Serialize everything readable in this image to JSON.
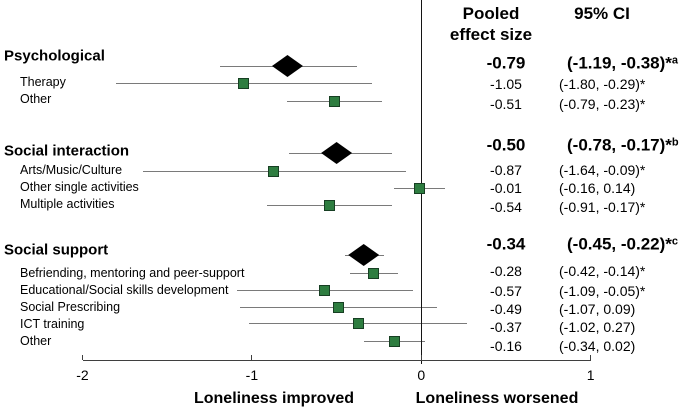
{
  "chart_data": {
    "type": "forest",
    "title": "",
    "xlim": [
      -2,
      1
    ],
    "grid": false,
    "x_ticks": [
      {
        "value": -2,
        "label": "-2"
      },
      {
        "value": -1,
        "label": "-1"
      },
      {
        "value": 0,
        "label": "0"
      },
      {
        "value": 1,
        "label": "1"
      }
    ],
    "direction_labels": {
      "left": "Loneliness improved",
      "right": "Loneliness worsened"
    },
    "column_headers": {
      "pooled_line1": "Pooled",
      "pooled_line2": "effect size",
      "ci": "95% CI"
    },
    "rows": [
      {
        "label": "Psychological",
        "kind": "summary",
        "est": -0.79,
        "lo": -1.19,
        "hi": -0.38,
        "est_text": "-0.79",
        "ci_text": "(-1.19, -0.38)*",
        "sup": "a",
        "y_marker": 66,
        "y_text": 63,
        "y_label": 56
      },
      {
        "label": "Therapy",
        "kind": "study",
        "est": -1.05,
        "lo": -1.8,
        "hi": -0.29,
        "est_text": "-1.05",
        "ci_text": "(-1.80, -0.29)*",
        "sup": "",
        "y_marker": 83,
        "y_text": 84,
        "y_label": 82
      },
      {
        "label": "Other",
        "kind": "study",
        "est": -0.51,
        "lo": -0.79,
        "hi": -0.23,
        "est_text": "-0.51",
        "ci_text": "(-0.79, -0.23)*",
        "sup": "",
        "y_marker": 101,
        "y_text": 104,
        "y_label": 99
      },
      {
        "label": "Social interaction",
        "kind": "summary",
        "est": -0.5,
        "lo": -0.78,
        "hi": -0.17,
        "est_text": "-0.50",
        "ci_text": "(-0.78, -0.17)*",
        "sup": "b",
        "y_marker": 153,
        "y_text": 145,
        "y_label": 151
      },
      {
        "label": "Arts/Music/Culture",
        "kind": "study",
        "est": -0.87,
        "lo": -1.64,
        "hi": -0.09,
        "est_text": "-0.87",
        "ci_text": "(-1.64, -0.09)*",
        "sup": "",
        "y_marker": 171,
        "y_text": 170,
        "y_label": 170
      },
      {
        "label": "Other single activities",
        "kind": "study",
        "est": -0.01,
        "lo": -0.16,
        "hi": 0.14,
        "est_text": "-0.01",
        "ci_text": "(-0.16, 0.14)",
        "sup": "",
        "y_marker": 188,
        "y_text": 188,
        "y_label": 187
      },
      {
        "label": "Multiple activities",
        "kind": "study",
        "est": -0.54,
        "lo": -0.91,
        "hi": -0.17,
        "est_text": "-0.54",
        "ci_text": "(-0.91, -0.17)*",
        "sup": "",
        "y_marker": 205,
        "y_text": 207,
        "y_label": 204
      },
      {
        "label": "Social support",
        "kind": "summary",
        "est": -0.34,
        "lo": -0.45,
        "hi": -0.22,
        "est_text": "-0.34",
        "ci_text": "(-0.45, -0.22)*",
        "sup": "c",
        "y_marker": 255,
        "y_text": 244,
        "y_label": 250
      },
      {
        "label": "Befriending, mentoring and peer-support",
        "kind": "study",
        "est": -0.28,
        "lo": -0.42,
        "hi": -0.14,
        "est_text": "-0.28",
        "ci_text": "(-0.42, -0.14)*",
        "sup": "",
        "y_marker": 273,
        "y_text": 271,
        "y_label": 273
      },
      {
        "label": "Educational/Social skills development",
        "kind": "study",
        "est": -0.57,
        "lo": -1.09,
        "hi": -0.05,
        "est_text": "-0.57",
        "ci_text": "(-1.09, -0.05)*",
        "sup": "",
        "y_marker": 290,
        "y_text": 291,
        "y_label": 290
      },
      {
        "label": "Social Prescribing",
        "kind": "study",
        "est": -0.49,
        "lo": -1.07,
        "hi": 0.09,
        "est_text": "-0.49",
        "ci_text": "(-1.07, 0.09)",
        "sup": "",
        "y_marker": 307,
        "y_text": 309,
        "y_label": 307
      },
      {
        "label": "ICT training",
        "kind": "study",
        "est": -0.37,
        "lo": -1.02,
        "hi": 0.27,
        "est_text": "-0.37",
        "ci_text": "(-1.02, 0.27)",
        "sup": "",
        "y_marker": 323,
        "y_text": 327,
        "y_label": 324
      },
      {
        "label": "Other",
        "kind": "study",
        "est": -0.16,
        "lo": -0.34,
        "hi": 0.02,
        "est_text": "-0.16",
        "ci_text": "(-0.34, 0.02)",
        "sup": "",
        "y_marker": 341,
        "y_text": 346,
        "y_label": 341
      }
    ]
  },
  "colors": {
    "study_marker": "#2e7d40",
    "study_marker_border": "#173f23",
    "summary_diamond": "#000000",
    "ci_line": "#7a7a7a",
    "zero_line": "#141414",
    "axis": "#3f3f3f",
    "text": "#000000",
    "background": "#ffffff"
  }
}
